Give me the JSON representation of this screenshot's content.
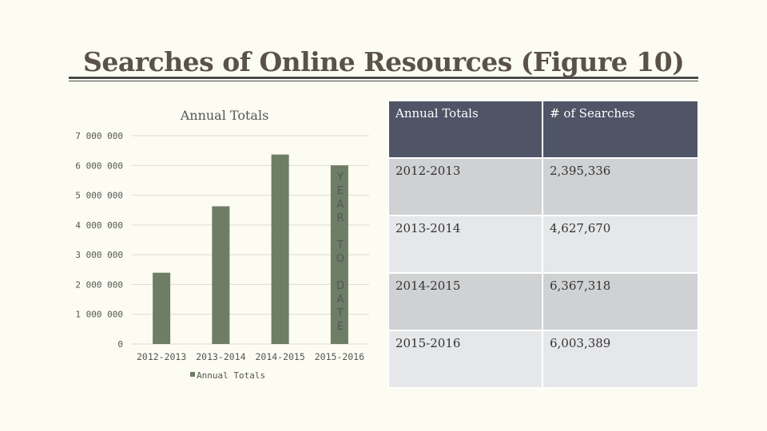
{
  "slide": {
    "title": "Searches of Online Resources (Figure 10)",
    "year_to_date_letters": [
      "Y",
      "E",
      "A",
      "R",
      "",
      "T",
      "O",
      "",
      "D",
      "A",
      "T",
      "E"
    ]
  },
  "chart_data": {
    "type": "bar",
    "title": "Annual Totals",
    "categories": [
      "2012-2013",
      "2013-2014",
      "2014-2015",
      "2015-2016"
    ],
    "series": [
      {
        "name": "Annual Totals",
        "values": [
          2395336,
          4627670,
          6367318,
          6003389
        ],
        "color": "#6e7d66"
      }
    ],
    "ylim": [
      0,
      7000000
    ],
    "yticks": [
      0,
      1000000,
      2000000,
      3000000,
      4000000,
      5000000,
      6000000,
      7000000
    ],
    "ytick_labels": [
      "0",
      "1 000 000",
      "2 000 000",
      "3 000 000",
      "4 000 000",
      "5 000 000",
      "6 000 000",
      "7 000 000"
    ],
    "grid": true,
    "legend": "bottom-left"
  },
  "table": {
    "headers": [
      "Annual Totals",
      "# of Searches"
    ],
    "rows": [
      [
        "2012-2013",
        "2,395,336"
      ],
      [
        "2013-2014",
        "4,627,670"
      ],
      [
        "2014-2015",
        "6,367,318"
      ],
      [
        "2015-2016",
        "6,003,389"
      ]
    ],
    "colors": {
      "header": "#4f5566",
      "row_dark": "#d0d1d3",
      "row_light": "#e6e7e9"
    }
  }
}
